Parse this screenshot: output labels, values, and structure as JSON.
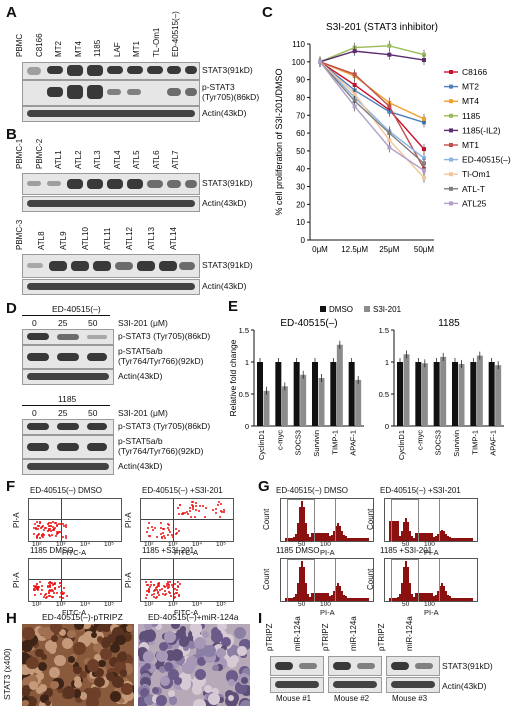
{
  "panels": {
    "A": "A",
    "B": "B",
    "C": "C",
    "D": "D",
    "E": "E",
    "F": "F",
    "G": "G",
    "H": "H",
    "I": "I"
  },
  "panelA": {
    "lanes": [
      "PBMC",
      "C8166",
      "MT2",
      "MT4",
      "1185",
      "LAF",
      "MT1",
      "TL-Om1",
      "ED-40515(–)"
    ],
    "labels": [
      "STAT3(91kD)",
      "p-STAT3 (Tyr705)(86kD)",
      "Actin(43kD)"
    ],
    "label_line1": "p-STAT3",
    "label_line2": "(Tyr705)(86kD)"
  },
  "panelB": {
    "lanes1": [
      "PBMC-1",
      "PBMC-2",
      "ATL1",
      "ATL2",
      "ATL3",
      "ATL4",
      "ATL5",
      "ATL6",
      "ATL7"
    ],
    "lanes2": [
      "PBMC-3",
      "ATL8",
      "ATL9",
      "ATL10",
      "ATL11",
      "ATL12",
      "ATL13",
      "ATL14"
    ],
    "labels": [
      "STAT3(91kD)",
      "Actin(43kD)"
    ]
  },
  "panelC": {
    "chart_data": {
      "type": "line",
      "title": "S3I-201 (STAT3 inhibitor)",
      "ylabel": "% cell proliferation of S3I-201/DMSO",
      "categories": [
        "0μM",
        "12.5μM",
        "25μM",
        "50μM"
      ],
      "ylim": [
        0,
        110
      ],
      "yticks": [
        0,
        10,
        20,
        30,
        40,
        50,
        60,
        70,
        80,
        90,
        100,
        110
      ],
      "series": [
        {
          "name": "C8166",
          "color": "#c8102e",
          "values": [
            100,
            87,
            73,
            51
          ]
        },
        {
          "name": "MT2",
          "color": "#4f81bd",
          "values": [
            100,
            84,
            72,
            66
          ]
        },
        {
          "name": "MT4",
          "color": "#f0a030",
          "values": [
            100,
            92,
            77,
            68
          ]
        },
        {
          "name": "1185",
          "color": "#9bbb59",
          "values": [
            100,
            108,
            109,
            104
          ]
        },
        {
          "name": "1185(-IL2)",
          "color": "#5b2c6f",
          "values": [
            100,
            106,
            104,
            101
          ]
        },
        {
          "name": "MT1",
          "color": "#c0504d",
          "values": [
            100,
            93,
            75,
            40
          ]
        },
        {
          "name": "ED-40515(–)",
          "color": "#8db4e2",
          "values": [
            100,
            80,
            61,
            46
          ]
        },
        {
          "name": "Tl-Om1",
          "color": "#f2c69a",
          "values": [
            100,
            82,
            56,
            35
          ]
        },
        {
          "name": "ATL-T",
          "color": "#7f7f7f",
          "values": [
            100,
            78,
            60,
            43
          ]
        },
        {
          "name": "ATL25",
          "color": "#b1a0c7",
          "values": [
            100,
            75,
            52,
            39
          ]
        }
      ]
    }
  },
  "panelD": {
    "group1": "ED-40515(–)",
    "group2": "1185",
    "doses": [
      "0",
      "25",
      "50"
    ],
    "dose_label": "S3I-201 (μM)",
    "labels": [
      "p-STAT3 (Tyr705)(86kD)",
      "p-STAT5a/b",
      "(Tyr764/Tyr766)(92kD)",
      "Actin(43kD)"
    ]
  },
  "panelE": {
    "legend": [
      "DMSO",
      "S3I-201"
    ],
    "ylabel": "Relative fold change",
    "chart_data": [
      {
        "type": "bar",
        "title": "ED-40515(–)",
        "categories": [
          "CyclinD1",
          "c-myc",
          "SOCS3",
          "Survivin",
          "TIMP-1",
          "APAF-1"
        ],
        "ylim": [
          0,
          1.5
        ],
        "yticks": [
          0,
          0.5,
          1,
          1.5
        ],
        "series": [
          {
            "name": "DMSO",
            "color": "#111111",
            "values": [
              1,
              1,
              1,
              1,
              1,
              1
            ]
          },
          {
            "name": "S3I-201",
            "color": "#8c8c8c",
            "values": [
              0.55,
              0.62,
              0.8,
              0.75,
              1.27,
              0.72
            ]
          }
        ]
      },
      {
        "type": "bar",
        "title": "1185",
        "categories": [
          "CyclinD1",
          "c-myc",
          "SOCS3",
          "Survivin",
          "TIMP-1",
          "APAF-1"
        ],
        "ylim": [
          0,
          1.5
        ],
        "yticks": [
          0,
          0.5,
          1,
          1.5
        ],
        "series": [
          {
            "name": "DMSO",
            "color": "#111111",
            "values": [
              1,
              1,
              1,
              1,
              1,
              1
            ]
          },
          {
            "name": "S3I-201",
            "color": "#8c8c8c",
            "values": [
              1.12,
              0.98,
              1.08,
              0.97,
              1.1,
              0.95
            ]
          }
        ]
      }
    ]
  },
  "panelF": {
    "plots": [
      "ED-40515(–) DMSO",
      "ED-40515(–) +S3I-201",
      "1185 DMSO",
      "1185 +S3I-201"
    ],
    "xlabel": "FITC-A",
    "ylabel": "PI-A",
    "ticks": [
      "10²",
      "10³",
      "10⁴",
      "10⁵"
    ]
  },
  "panelG": {
    "plots": [
      "ED-40515(–) DMSO",
      "ED-40515(–) +S3I-201",
      "1185 DMSO",
      "1185 +S3I-201"
    ],
    "xlabel": "PI-A",
    "ylabel": "Count",
    "xticks": [
      "50",
      "100"
    ]
  },
  "panelH": {
    "left_title": "ED-40515(–)-pTRIPZ",
    "right_title": "ED-40515(–)+miR-124a",
    "ylabel": "STAT3 (x400)"
  },
  "panelI": {
    "lanes": [
      "pTRIPZ",
      "miR-124a",
      "pTRIPZ",
      "miR-124a",
      "pTRIPZ",
      "miR-124a"
    ],
    "mice": [
      "Mouse #1",
      "Mouse #2",
      "Mouse #3"
    ],
    "labels": [
      "STAT3(91kD)",
      "Actin(43kD)"
    ]
  }
}
